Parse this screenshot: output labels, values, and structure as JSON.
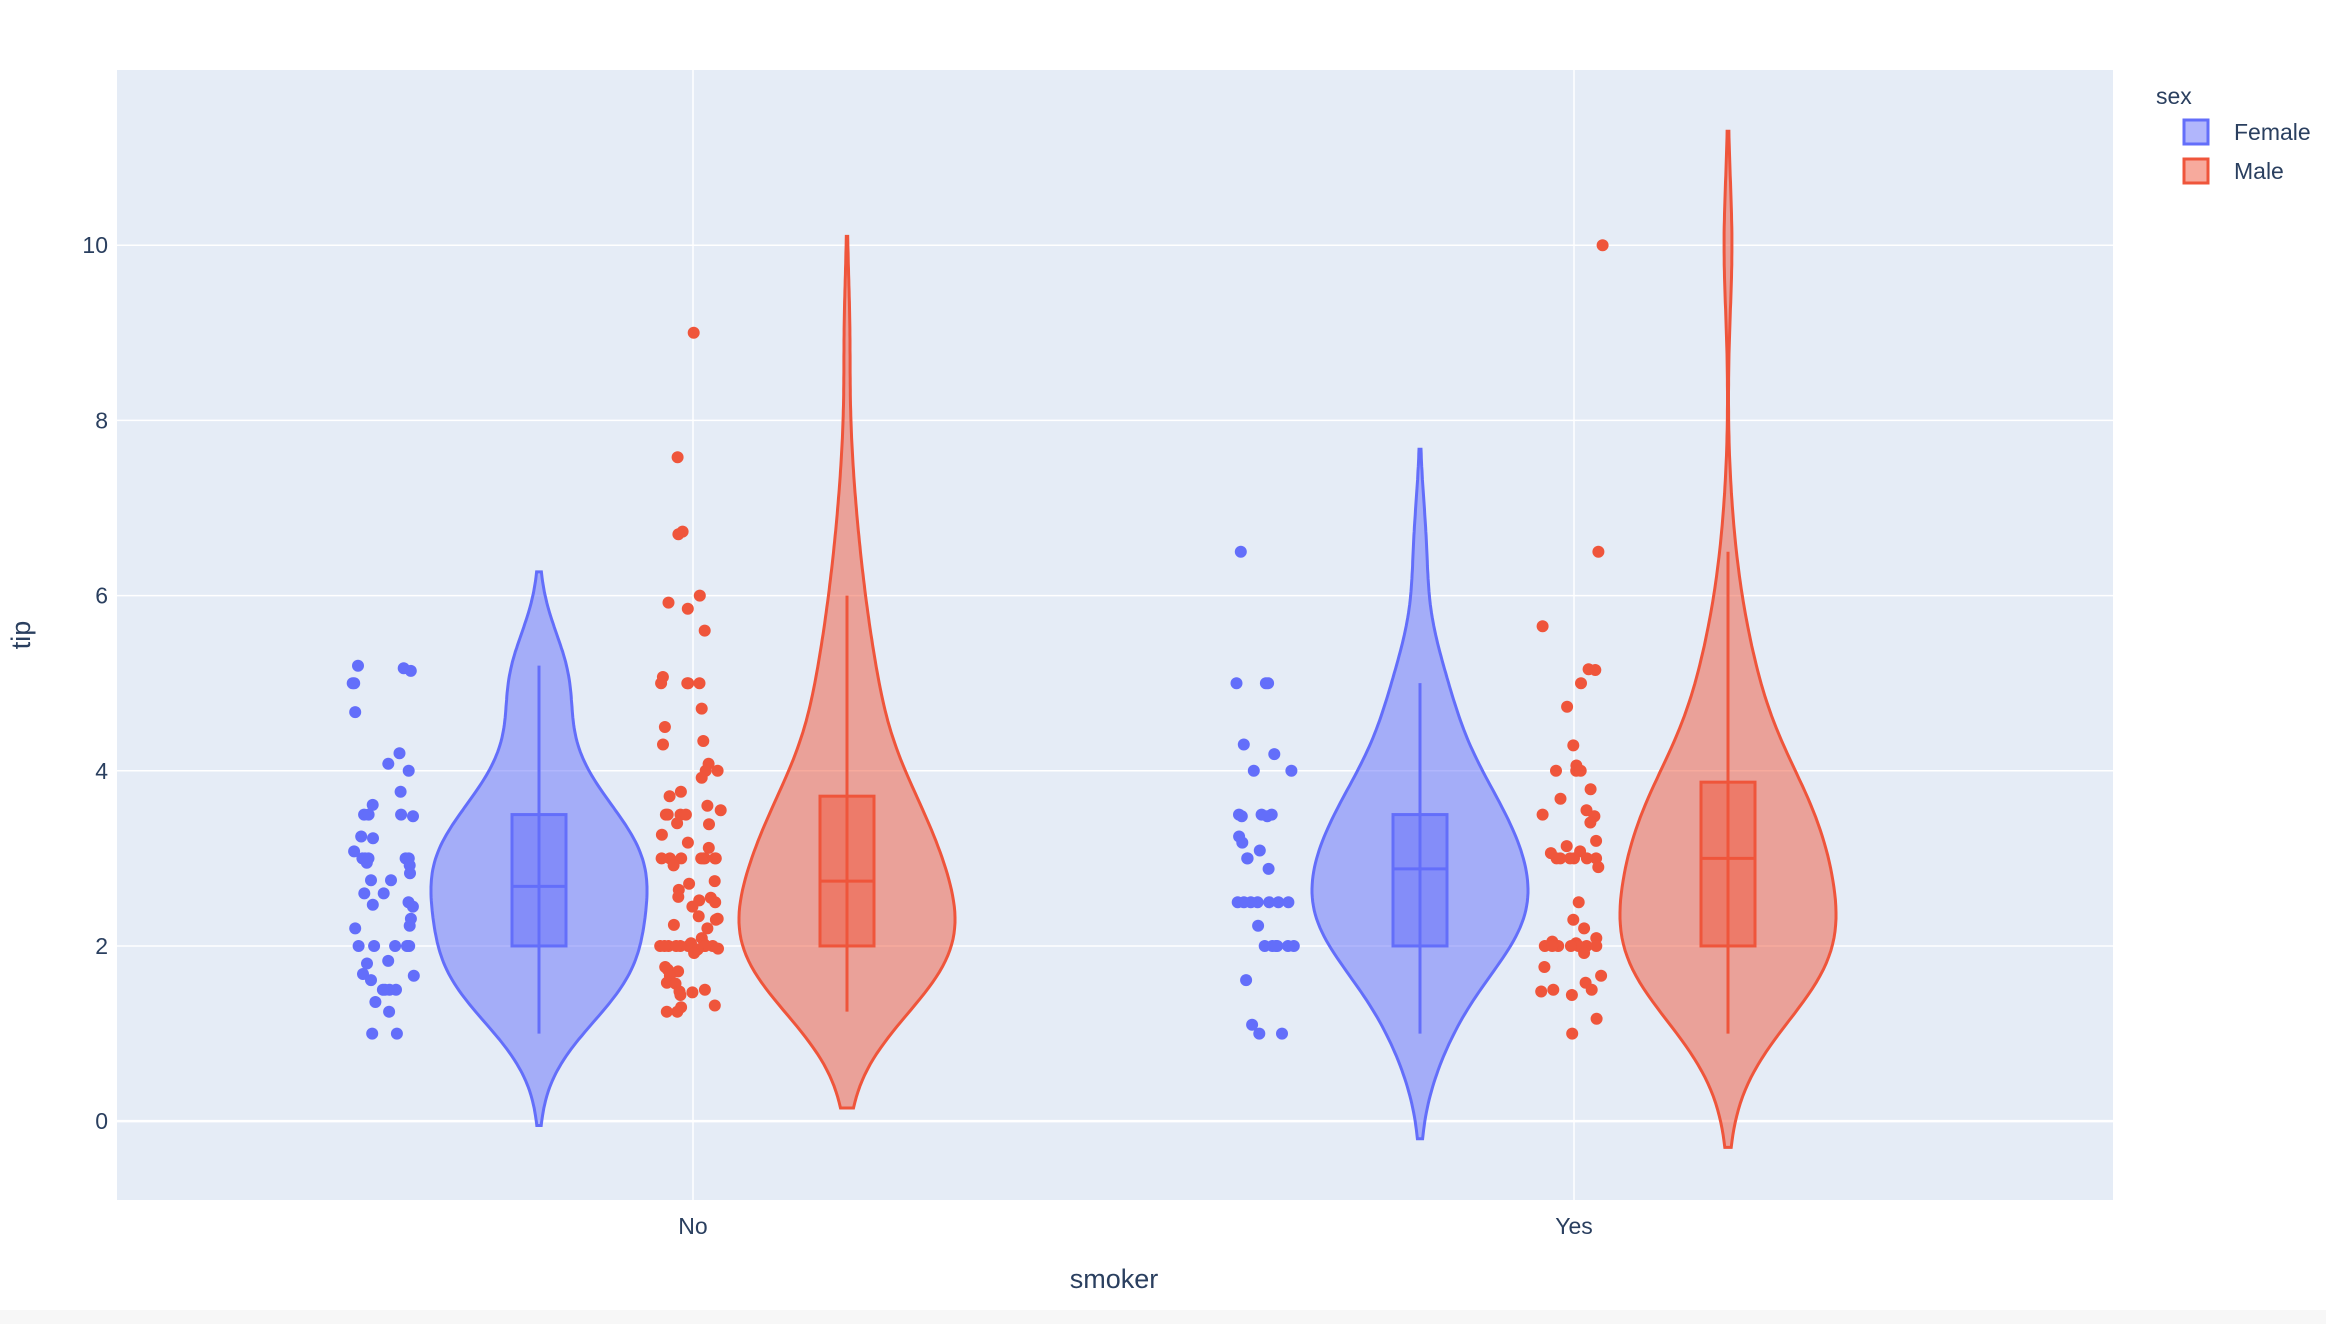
{
  "chart_data": {
    "type": "violin",
    "xlabel": "smoker",
    "ylabel": "tip",
    "categories": [
      "No",
      "Yes"
    ],
    "ylim": [
      -0.9,
      12.0
    ],
    "yticks": [
      0,
      2,
      4,
      6,
      8,
      10
    ],
    "grid": true,
    "points": "all",
    "box": true,
    "legend": {
      "title": "sex",
      "placement": "top-right"
    },
    "series": [
      {
        "name": "Female",
        "color": "#636efa",
        "groups": [
          {
            "category": "No",
            "box": {
              "min": 1.0,
              "q1": 2.0,
              "median": 2.68,
              "q3": 3.5,
              "max": 5.2
            },
            "kde_range": [
              -0.05,
              6.27
            ],
            "points": [
              5.2,
              5.17,
              5.14,
              5.0,
              5.0,
              4.67,
              4.2,
              4.08,
              4.0,
              3.76,
              3.61,
              3.5,
              3.5,
              3.5,
              3.48,
              3.25,
              3.23,
              3.08,
              3.0,
              3.0,
              3.0,
              3.0,
              3.0,
              2.95,
              2.92,
              2.83,
              2.75,
              2.75,
              2.6,
              2.6,
              2.5,
              2.47,
              2.45,
              2.31,
              2.23,
              2.2,
              2.0,
              2.0,
              2.0,
              2.0,
              2.0,
              1.83,
              1.8,
              1.68,
              1.66,
              1.61,
              1.5,
              1.5,
              1.5,
              1.5,
              1.36,
              1.25,
              1.0,
              1.0
            ]
          },
          {
            "category": "Yes",
            "box": {
              "min": 1.0,
              "q1": 2.0,
              "median": 2.88,
              "q3": 3.5,
              "max": 5.0
            },
            "kde_range": [
              -0.2,
              7.67
            ],
            "points": [
              6.5,
              5.0,
              5.0,
              5.0,
              4.3,
              4.19,
              4.0,
              4.0,
              3.5,
              3.5,
              3.5,
              3.48,
              3.48,
              3.25,
              3.18,
              3.09,
              3.0,
              3.0,
              2.88,
              2.5,
              2.5,
              2.5,
              2.5,
              2.5,
              2.5,
              2.5,
              2.23,
              2.0,
              2.0,
              2.0,
              2.0,
              2.0,
              2.0,
              1.61,
              1.1,
              1.0,
              1.0
            ]
          }
        ]
      },
      {
        "name": "Male",
        "color": "#ef553b",
        "groups": [
          {
            "category": "No",
            "box": {
              "min": 1.25,
              "q1": 2.0,
              "median": 2.74,
              "q3": 3.71,
              "max": 6.0
            },
            "kde_range": [
              0.15,
              10.1
            ],
            "points": [
              9.0,
              7.58,
              6.73,
              6.7,
              6.0,
              5.92,
              5.85,
              5.6,
              5.07,
              5.0,
              5.0,
              5.0,
              5.0,
              4.71,
              4.5,
              4.34,
              4.3,
              4.08,
              4.0,
              4.0,
              3.92,
              3.76,
              3.71,
              3.6,
              3.55,
              3.5,
              3.5,
              3.5,
              3.5,
              3.4,
              3.39,
              3.27,
              3.18,
              3.12,
              3.0,
              3.0,
              3.0,
              3.0,
              3.0,
              3.0,
              3.0,
              3.0,
              2.92,
              2.74,
              2.71,
              2.64,
              2.56,
              2.55,
              2.52,
              2.5,
              2.45,
              2.34,
              2.31,
              2.3,
              2.24,
              2.2,
              2.09,
              2.03,
              2.02,
              2.0,
              2.0,
              2.0,
              2.0,
              2.0,
              2.0,
              2.0,
              2.0,
              2.0,
              1.97,
              1.96,
              1.92,
              1.76,
              1.73,
              1.71,
              1.66,
              1.58,
              1.57,
              1.5,
              1.48,
              1.47,
              1.44,
              1.32,
              1.3,
              1.25,
              1.25
            ]
          },
          {
            "category": "Yes",
            "box": {
              "min": 1.0,
              "q1": 2.0,
              "median": 3.0,
              "q3": 3.87,
              "max": 6.5
            },
            "kde_range": [
              -0.3,
              11.3
            ],
            "points": [
              10.0,
              6.5,
              5.65,
              5.16,
              5.15,
              5.0,
              4.73,
              4.29,
              4.06,
              4.0,
              4.0,
              4.0,
              3.79,
              3.68,
              3.55,
              3.5,
              3.48,
              3.41,
              3.2,
              3.14,
              3.08,
              3.06,
              3.0,
              3.0,
              3.0,
              3.0,
              3.0,
              3.0,
              2.9,
              2.5,
              2.3,
              2.2,
              2.09,
              2.05,
              2.03,
              2.01,
              2.0,
              2.0,
              2.0,
              2.0,
              2.0,
              2.0,
              2.0,
              1.92,
              1.76,
              1.66,
              1.58,
              1.5,
              1.5,
              1.48,
              1.44,
              1.17,
              1.0
            ]
          }
        ]
      }
    ]
  }
}
